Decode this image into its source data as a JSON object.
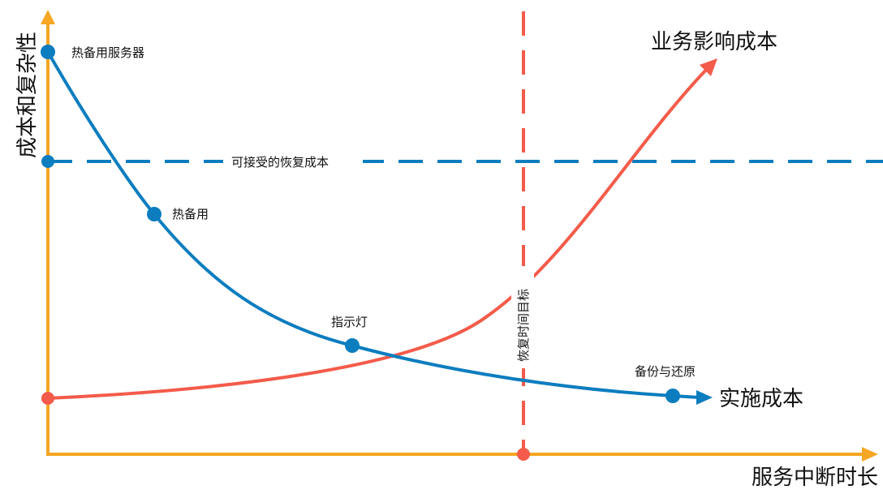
{
  "axes": {
    "y_label": "成本和复杂性",
    "x_label": "服务中断时长"
  },
  "curves": {
    "implementation_cost": {
      "label": "实施成本",
      "color": "#0c7dbf"
    },
    "business_impact_cost": {
      "label": "业务影响成本",
      "color": "#f45b4a"
    }
  },
  "points": [
    {
      "label": "热备用服务器"
    },
    {
      "label": "热备用"
    },
    {
      "label": "指示灯"
    },
    {
      "label": "备份与还原"
    }
  ],
  "acceptable_recovery_cost": {
    "label": "可接受的恢复成本",
    "color": "#0c7dbf"
  },
  "recovery_time_objective": {
    "label": "恢复时间目标",
    "color": "#f45b4a"
  },
  "colors": {
    "axis": "#f5a623",
    "text": "#111111"
  }
}
